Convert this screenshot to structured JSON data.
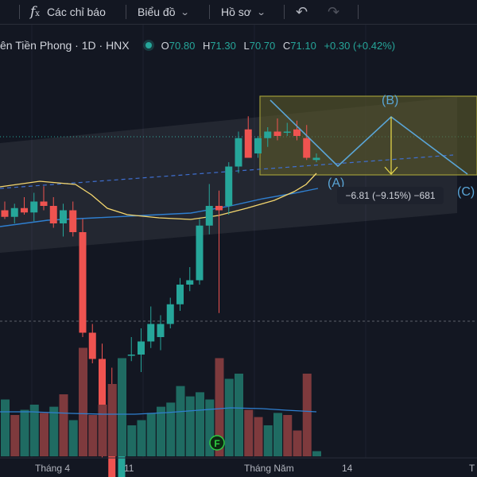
{
  "toolbar": {
    "indicators_label": "Các chỉ báo",
    "chart_type_label": "Biểu đồ",
    "profile_label": "Hồ sơ"
  },
  "legend": {
    "symbol_text": "ên Tiền Phong · 1D · HNX",
    "open_key": "O",
    "open_val": "70.80",
    "high_key": "H",
    "high_val": "71.30",
    "low_key": "L",
    "low_val": "70.70",
    "close_key": "C",
    "close_val": "71.10",
    "change": "+0.30 (+0.42%)"
  },
  "pattern": {
    "label_a": "(A)",
    "label_b": "(B)",
    "label_c": "(C)",
    "measure": "−6.81 (−9.15%) −681"
  },
  "x_axis": {
    "labels": [
      "Tháng 4",
      "11",
      "Tháng Năm",
      "14",
      "T"
    ]
  },
  "volume_marker": "F",
  "colors": {
    "background": "#131722",
    "up": "#26a69a",
    "down": "#ef5350",
    "volume_up": "#1f6b62",
    "volume_down": "#7e3a3d",
    "ma_short": "#f5d76e",
    "ma_long": "#2f7fd0",
    "pattern_line": "#5aa5d6",
    "pattern_fill": "#5c5a2a"
  },
  "chart_data": {
    "type": "candlestick",
    "candles": [
      {
        "o": 77.6,
        "h": 78.0,
        "l": 77.2,
        "c": 77.3
      },
      {
        "o": 77.3,
        "h": 77.9,
        "l": 77.0,
        "c": 77.7
      },
      {
        "o": 77.7,
        "h": 78.2,
        "l": 77.4,
        "c": 77.5
      },
      {
        "o": 77.5,
        "h": 78.4,
        "l": 77.1,
        "c": 78.0
      },
      {
        "o": 78.0,
        "h": 78.7,
        "l": 77.6,
        "c": 77.8
      },
      {
        "o": 77.8,
        "h": 78.2,
        "l": 76.8,
        "c": 77.0
      },
      {
        "o": 77.0,
        "h": 77.9,
        "l": 76.4,
        "c": 77.6
      },
      {
        "o": 77.6,
        "h": 78.0,
        "l": 76.4,
        "c": 76.6
      },
      {
        "o": 76.6,
        "h": 77.2,
        "l": 71.8,
        "c": 72.0
      },
      {
        "o": 72.0,
        "h": 72.4,
        "l": 70.6,
        "c": 70.8
      },
      {
        "o": 70.8,
        "h": 71.5,
        "l": 66.3,
        "c": 67.8
      },
      {
        "o": 67.8,
        "h": 70.4,
        "l": 64.8,
        "c": 65.0
      },
      {
        "o": 65.0,
        "h": 70.2,
        "l": 64.8,
        "c": 70.1
      },
      {
        "o": 71.0,
        "h": 71.8,
        "l": 70.7,
        "c": 71.0
      },
      {
        "o": 71.0,
        "h": 72.2,
        "l": 70.2,
        "c": 71.6
      },
      {
        "o": 71.6,
        "h": 73.2,
        "l": 71.3,
        "c": 72.4
      },
      {
        "o": 71.8,
        "h": 72.8,
        "l": 71.2,
        "c": 72.4
      },
      {
        "o": 72.4,
        "h": 73.6,
        "l": 72.2,
        "c": 73.3
      },
      {
        "o": 73.3,
        "h": 74.5,
        "l": 73.0,
        "c": 74.2
      },
      {
        "o": 74.2,
        "h": 75.0,
        "l": 73.9,
        "c": 74.4
      },
      {
        "o": 74.4,
        "h": 77.2,
        "l": 74.2,
        "c": 76.9
      },
      {
        "o": 76.9,
        "h": 78.8,
        "l": 76.5,
        "c": 77.8
      },
      {
        "o": 77.8,
        "h": 78.5,
        "l": 72.9,
        "c": 77.6
      },
      {
        "o": 77.8,
        "h": 79.8,
        "l": 77.4,
        "c": 79.6
      },
      {
        "o": 79.6,
        "h": 81.2,
        "l": 79.3,
        "c": 80.9
      },
      {
        "o": 81.3,
        "h": 81.9,
        "l": 80.0,
        "c": 80.0
      },
      {
        "o": 80.2,
        "h": 81.0,
        "l": 80.0,
        "c": 80.9
      },
      {
        "o": 80.9,
        "h": 81.4,
        "l": 80.5,
        "c": 81.2
      },
      {
        "o": 81.2,
        "h": 81.8,
        "l": 80.8,
        "c": 81.0
      },
      {
        "o": 81.2,
        "h": 81.6,
        "l": 81.0,
        "c": 81.2
      },
      {
        "o": 81.3,
        "h": 81.7,
        "l": 80.8,
        "c": 81.0
      },
      {
        "o": 80.9,
        "h": 81.5,
        "l": 79.9,
        "c": 80.0
      },
      {
        "o": 79.9,
        "h": 80.2,
        "l": 79.8,
        "c": 80.0
      }
    ],
    "volume": [
      {
        "v": 0.55,
        "up": true
      },
      {
        "v": 0.4,
        "up": false
      },
      {
        "v": 0.45,
        "up": true
      },
      {
        "v": 0.5,
        "up": true
      },
      {
        "v": 0.42,
        "up": false
      },
      {
        "v": 0.48,
        "up": true
      },
      {
        "v": 0.6,
        "up": false
      },
      {
        "v": 0.35,
        "up": true
      },
      {
        "v": 1.05,
        "up": false
      },
      {
        "v": 0.4,
        "up": false
      },
      {
        "v": 0.5,
        "up": false
      },
      {
        "v": 0.7,
        "up": false
      },
      {
        "v": 0.95,
        "up": true
      },
      {
        "v": 0.3,
        "up": true
      },
      {
        "v": 0.35,
        "up": true
      },
      {
        "v": 0.42,
        "up": true
      },
      {
        "v": 0.48,
        "up": true
      },
      {
        "v": 0.52,
        "up": true
      },
      {
        "v": 0.68,
        "up": true
      },
      {
        "v": 0.58,
        "up": true
      },
      {
        "v": 0.62,
        "up": true
      },
      {
        "v": 0.55,
        "up": true
      },
      {
        "v": 0.95,
        "up": false
      },
      {
        "v": 0.75,
        "up": true
      },
      {
        "v": 0.8,
        "up": true
      },
      {
        "v": 0.45,
        "up": false
      },
      {
        "v": 0.38,
        "up": false
      },
      {
        "v": 0.3,
        "up": true
      },
      {
        "v": 0.42,
        "up": true
      },
      {
        "v": 0.4,
        "up": false
      },
      {
        "v": 0.25,
        "up": false
      },
      {
        "v": 0.8,
        "up": false
      },
      {
        "v": 0.05,
        "up": true
      }
    ]
  }
}
